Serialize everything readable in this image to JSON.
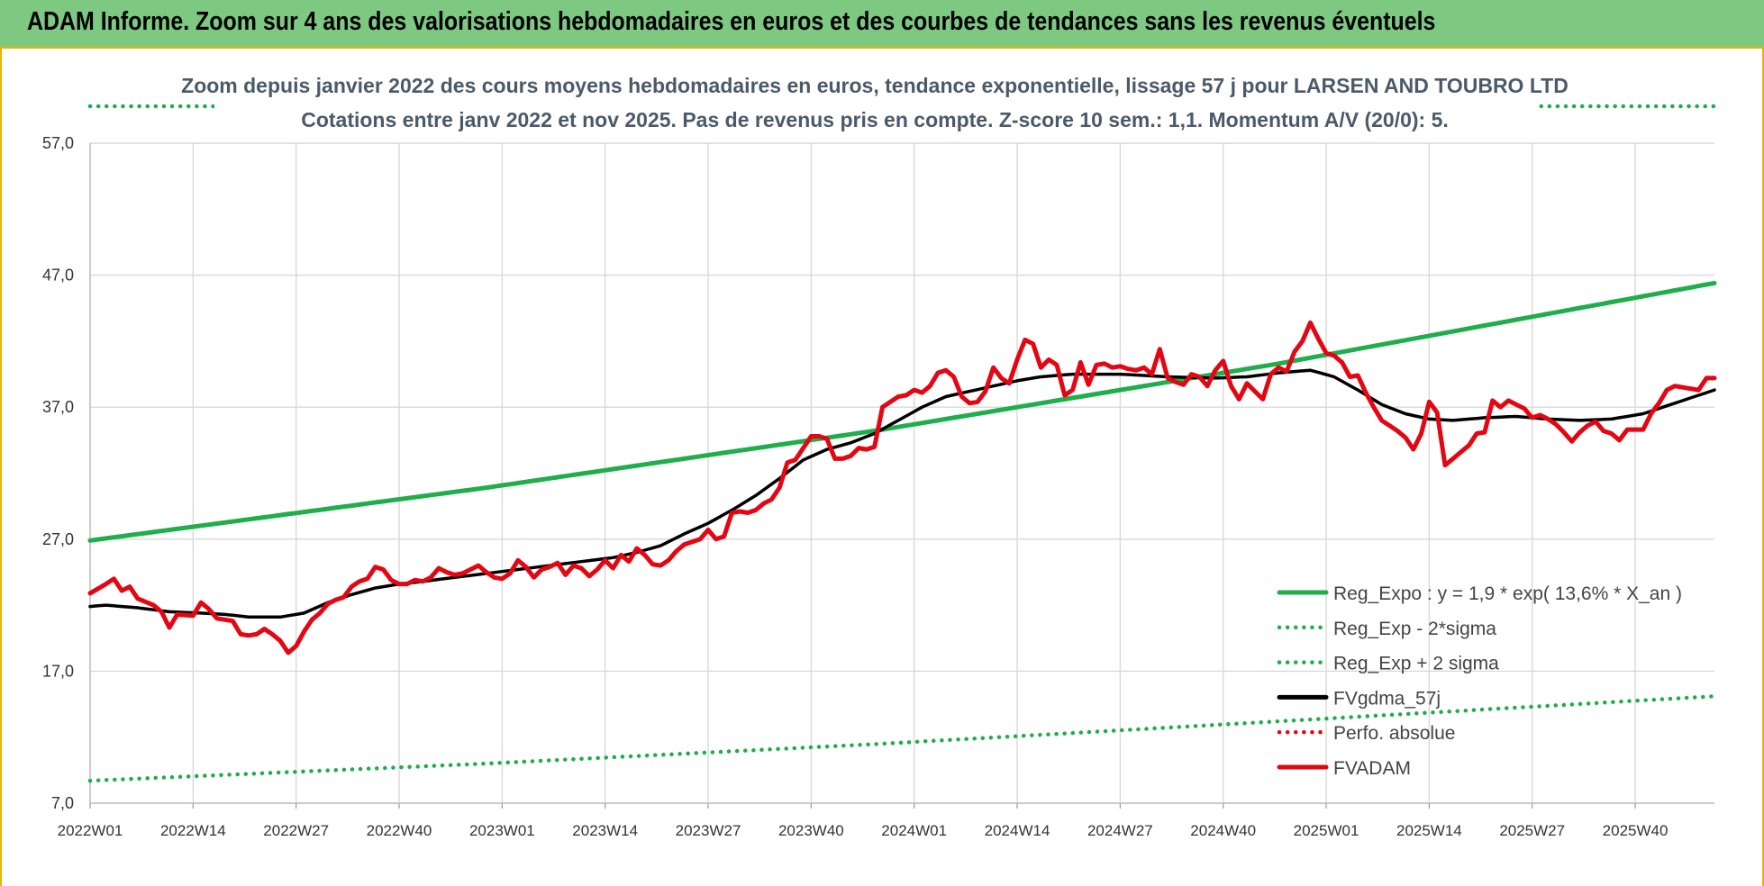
{
  "header": {
    "title": "ADAM Informe. Zoom sur 4 ans des valorisations hebdomadaires en euros et des courbes de tendances sans les revenus éventuels"
  },
  "colors": {
    "header_bg": "#7dc982",
    "green": "#1fae4b",
    "black": "#000000",
    "red": "#e30613",
    "grid": "#d9d9d9"
  },
  "chart_data": {
    "type": "line",
    "title": "Zoom depuis janvier 2022 des cours moyens hebdomadaires en euros, tendance exponentielle, lissage 57 j pour LARSEN AND TOUBRO LTD",
    "subtitle": "Cotations entre janv 2022 et nov 2025. Pas de revenus pris en compte. Z-score 10 sem.: 1,1. Momentum A/V (20/0): 5.",
    "ylim": [
      7,
      57
    ],
    "y_ticks": [
      "57,0",
      "47,0",
      "37,0",
      "27,0",
      "17,0",
      "7,0"
    ],
    "y_tick_values": [
      57,
      47,
      37,
      27,
      17,
      7
    ],
    "x_ticks": [
      "2022W01",
      "2022W14",
      "2022W27",
      "2022W40",
      "2023W01",
      "2023W14",
      "2023W27",
      "2023W40",
      "2024W01",
      "2024W14",
      "2024W27",
      "2024W40",
      "2025W01",
      "2025W14",
      "2025W27",
      "2025W40"
    ],
    "x_tick_index": [
      0,
      13,
      26,
      39,
      52,
      65,
      78,
      91,
      104,
      117,
      130,
      143,
      156,
      169,
      182,
      195
    ],
    "n_points": 206,
    "series": [
      {
        "name": "Reg_Expo : y = 1,9 * exp( 13,6% *  X_an )",
        "style": "solid",
        "color": "#1fae4b",
        "anchors": [
          [
            0,
            26.9
          ],
          [
            50,
            30.9
          ],
          [
            100,
            35.3
          ],
          [
            150,
            40.3
          ],
          [
            205,
            46.4
          ]
        ]
      },
      {
        "name": "Reg_Exp - 2*sigma",
        "style": "dotted",
        "color": "#1fae4b",
        "anchors": [
          [
            0,
            8.7
          ],
          [
            50,
            10.0
          ],
          [
            100,
            11.5
          ],
          [
            150,
            13.2
          ],
          [
            205,
            15.1
          ]
        ]
      },
      {
        "name": "Reg_Exp + 2 sigma",
        "style": "dotted",
        "color": "#1fae4b",
        "anchors": [
          [
            0,
            59.8
          ],
          [
            205,
            59.8
          ]
        ]
      },
      {
        "name": "FVgdma_57j",
        "style": "solid",
        "color": "#000000",
        "anchors": [
          [
            0,
            21.9
          ],
          [
            2,
            22.0
          ],
          [
            6,
            21.8
          ],
          [
            10,
            21.5
          ],
          [
            14,
            21.4
          ],
          [
            17,
            21.3
          ],
          [
            20,
            21.1
          ],
          [
            24,
            21.1
          ],
          [
            27,
            21.4
          ],
          [
            30,
            22.2
          ],
          [
            33,
            22.8
          ],
          [
            36,
            23.3
          ],
          [
            39,
            23.6
          ],
          [
            42,
            23.8
          ],
          [
            46,
            24.1
          ],
          [
            50,
            24.4
          ],
          [
            54,
            24.7
          ],
          [
            58,
            25.0
          ],
          [
            62,
            25.3
          ],
          [
            66,
            25.6
          ],
          [
            69,
            26.0
          ],
          [
            72,
            26.5
          ],
          [
            75,
            27.4
          ],
          [
            78,
            28.2
          ],
          [
            81,
            29.2
          ],
          [
            84,
            30.3
          ],
          [
            87,
            31.6
          ],
          [
            90,
            33.0
          ],
          [
            93,
            33.8
          ],
          [
            96,
            34.3
          ],
          [
            99,
            35.0
          ],
          [
            102,
            36.0
          ],
          [
            105,
            37.0
          ],
          [
            108,
            37.8
          ],
          [
            111,
            38.2
          ],
          [
            114,
            38.6
          ],
          [
            117,
            39.0
          ],
          [
            120,
            39.3
          ],
          [
            124,
            39.5
          ],
          [
            130,
            39.5
          ],
          [
            136,
            39.3
          ],
          [
            142,
            39.2
          ],
          [
            146,
            39.3
          ],
          [
            150,
            39.6
          ],
          [
            154,
            39.8
          ],
          [
            157,
            39.3
          ],
          [
            160,
            38.3
          ],
          [
            163,
            37.2
          ],
          [
            166,
            36.5
          ],
          [
            169,
            36.1
          ],
          [
            172,
            36.0
          ],
          [
            176,
            36.2
          ],
          [
            180,
            36.3
          ],
          [
            184,
            36.1
          ],
          [
            188,
            36.0
          ],
          [
            192,
            36.1
          ],
          [
            196,
            36.5
          ],
          [
            199,
            37.1
          ],
          [
            202,
            37.7
          ],
          [
            205,
            38.3
          ]
        ]
      },
      {
        "name": "Perfo. absolue",
        "style": "dotted",
        "color": "#e30613",
        "anchors": []
      },
      {
        "name": "FVADAM",
        "style": "solid",
        "color": "#e30613",
        "anchors": [
          [
            0,
            22.9
          ],
          [
            2,
            23.6
          ],
          [
            3,
            24.0
          ],
          [
            4,
            23.1
          ],
          [
            5,
            23.4
          ],
          [
            6,
            22.5
          ],
          [
            8,
            22.0
          ],
          [
            9,
            21.5
          ],
          [
            10,
            20.3
          ],
          [
            11,
            21.3
          ],
          [
            13,
            21.2
          ],
          [
            14,
            22.2
          ],
          [
            15,
            21.7
          ],
          [
            16,
            21.0
          ],
          [
            17,
            20.9
          ],
          [
            18,
            20.8
          ],
          [
            19,
            19.8
          ],
          [
            20,
            19.7
          ],
          [
            21,
            19.8
          ],
          [
            22,
            20.2
          ],
          [
            23,
            19.8
          ],
          [
            24,
            19.3
          ],
          [
            25,
            18.4
          ],
          [
            26,
            18.9
          ],
          [
            27,
            20.0
          ],
          [
            28,
            20.9
          ],
          [
            29,
            21.4
          ],
          [
            30,
            22.1
          ],
          [
            31,
            22.4
          ],
          [
            32,
            22.6
          ],
          [
            33,
            23.4
          ],
          [
            34,
            23.8
          ],
          [
            35,
            24.0
          ],
          [
            36,
            24.9
          ],
          [
            37,
            24.7
          ],
          [
            38,
            23.9
          ],
          [
            39,
            23.6
          ],
          [
            40,
            23.6
          ],
          [
            41,
            23.9
          ],
          [
            42,
            23.8
          ],
          [
            43,
            24.1
          ],
          [
            44,
            24.8
          ],
          [
            45,
            24.5
          ],
          [
            46,
            24.3
          ],
          [
            47,
            24.4
          ],
          [
            48,
            24.7
          ],
          [
            49,
            25.0
          ],
          [
            50,
            24.5
          ],
          [
            51,
            24.1
          ],
          [
            52,
            24.0
          ],
          [
            53,
            24.4
          ],
          [
            54,
            25.4
          ],
          [
            55,
            24.9
          ],
          [
            56,
            24.1
          ],
          [
            57,
            24.7
          ],
          [
            58,
            24.9
          ],
          [
            59,
            25.2
          ],
          [
            60,
            24.3
          ],
          [
            61,
            25.0
          ],
          [
            62,
            24.8
          ],
          [
            63,
            24.2
          ],
          [
            64,
            24.7
          ],
          [
            65,
            25.4
          ],
          [
            66,
            24.8
          ],
          [
            67,
            25.8
          ],
          [
            68,
            25.3
          ],
          [
            69,
            26.3
          ],
          [
            70,
            25.8
          ],
          [
            71,
            25.1
          ],
          [
            72,
            25.0
          ],
          [
            73,
            25.4
          ],
          [
            74,
            26.1
          ],
          [
            75,
            26.6
          ],
          [
            76,
            26.8
          ],
          [
            77,
            27.0
          ],
          [
            78,
            27.7
          ],
          [
            79,
            27.0
          ],
          [
            80,
            27.2
          ],
          [
            81,
            29.0
          ],
          [
            82,
            29.1
          ],
          [
            83,
            29.0
          ],
          [
            84,
            29.2
          ],
          [
            85,
            29.7
          ],
          [
            86,
            30.0
          ],
          [
            87,
            30.9
          ],
          [
            88,
            32.8
          ],
          [
            89,
            33.0
          ],
          [
            90,
            33.9
          ],
          [
            91,
            34.8
          ],
          [
            92,
            34.8
          ],
          [
            93,
            34.6
          ],
          [
            94,
            33.1
          ],
          [
            95,
            33.1
          ],
          [
            96,
            33.3
          ],
          [
            97,
            33.9
          ],
          [
            98,
            33.8
          ],
          [
            99,
            34.0
          ],
          [
            100,
            37.0
          ],
          [
            101,
            37.4
          ],
          [
            102,
            37.8
          ],
          [
            103,
            37.9
          ],
          [
            104,
            38.3
          ],
          [
            105,
            38.1
          ],
          [
            106,
            38.6
          ],
          [
            107,
            39.6
          ],
          [
            108,
            39.8
          ],
          [
            109,
            39.3
          ],
          [
            110,
            37.8
          ],
          [
            111,
            37.3
          ],
          [
            112,
            37.4
          ],
          [
            113,
            38.2
          ],
          [
            114,
            40.0
          ],
          [
            115,
            39.2
          ],
          [
            116,
            38.8
          ],
          [
            117,
            40.6
          ],
          [
            118,
            42.1
          ],
          [
            119,
            41.8
          ],
          [
            120,
            40.0
          ],
          [
            121,
            40.6
          ],
          [
            122,
            40.2
          ],
          [
            123,
            37.9
          ],
          [
            124,
            38.3
          ],
          [
            125,
            40.4
          ],
          [
            126,
            38.7
          ],
          [
            127,
            40.2
          ],
          [
            128,
            40.3
          ],
          [
            129,
            40.0
          ],
          [
            130,
            40.1
          ],
          [
            131,
            39.9
          ],
          [
            132,
            39.8
          ],
          [
            133,
            40.0
          ],
          [
            134,
            39.5
          ],
          [
            135,
            41.4
          ],
          [
            136,
            39.2
          ],
          [
            137,
            38.9
          ],
          [
            138,
            38.7
          ],
          [
            139,
            39.5
          ],
          [
            140,
            39.3
          ],
          [
            141,
            38.6
          ],
          [
            142,
            39.8
          ],
          [
            143,
            40.5
          ],
          [
            144,
            38.6
          ],
          [
            145,
            37.6
          ],
          [
            146,
            38.8
          ],
          [
            147,
            38.2
          ],
          [
            148,
            37.6
          ],
          [
            149,
            39.5
          ],
          [
            150,
            40.0
          ],
          [
            151,
            39.7
          ],
          [
            152,
            41.2
          ],
          [
            153,
            42.0
          ],
          [
            154,
            43.4
          ],
          [
            155,
            42.2
          ],
          [
            156,
            41.1
          ],
          [
            157,
            40.9
          ],
          [
            158,
            40.4
          ],
          [
            159,
            39.3
          ],
          [
            160,
            39.4
          ],
          [
            161,
            38.1
          ],
          [
            162,
            37.0
          ],
          [
            163,
            36.0
          ],
          [
            164,
            35.6
          ],
          [
            165,
            35.2
          ],
          [
            166,
            34.7
          ],
          [
            167,
            33.8
          ],
          [
            168,
            35.0
          ],
          [
            169,
            37.4
          ],
          [
            170,
            36.6
          ],
          [
            171,
            32.6
          ],
          [
            172,
            33.1
          ],
          [
            173,
            33.6
          ],
          [
            174,
            34.1
          ],
          [
            175,
            35.0
          ],
          [
            176,
            35.1
          ],
          [
            177,
            37.5
          ],
          [
            178,
            37.0
          ],
          [
            179,
            37.5
          ],
          [
            180,
            37.2
          ],
          [
            181,
            36.9
          ],
          [
            182,
            36.2
          ],
          [
            183,
            36.4
          ],
          [
            184,
            36.1
          ],
          [
            185,
            35.7
          ],
          [
            186,
            35.1
          ],
          [
            187,
            34.4
          ],
          [
            188,
            35.1
          ],
          [
            189,
            35.6
          ],
          [
            190,
            35.9
          ],
          [
            191,
            35.2
          ],
          [
            192,
            35.0
          ],
          [
            193,
            34.5
          ],
          [
            194,
            35.3
          ],
          [
            195,
            35.3
          ],
          [
            196,
            35.3
          ],
          [
            197,
            36.5
          ],
          [
            198,
            37.3
          ],
          [
            199,
            38.3
          ],
          [
            200,
            38.6
          ],
          [
            201,
            38.5
          ],
          [
            202,
            38.4
          ],
          [
            203,
            38.3
          ],
          [
            204,
            39.2
          ],
          [
            205,
            39.2
          ]
        ]
      }
    ]
  }
}
